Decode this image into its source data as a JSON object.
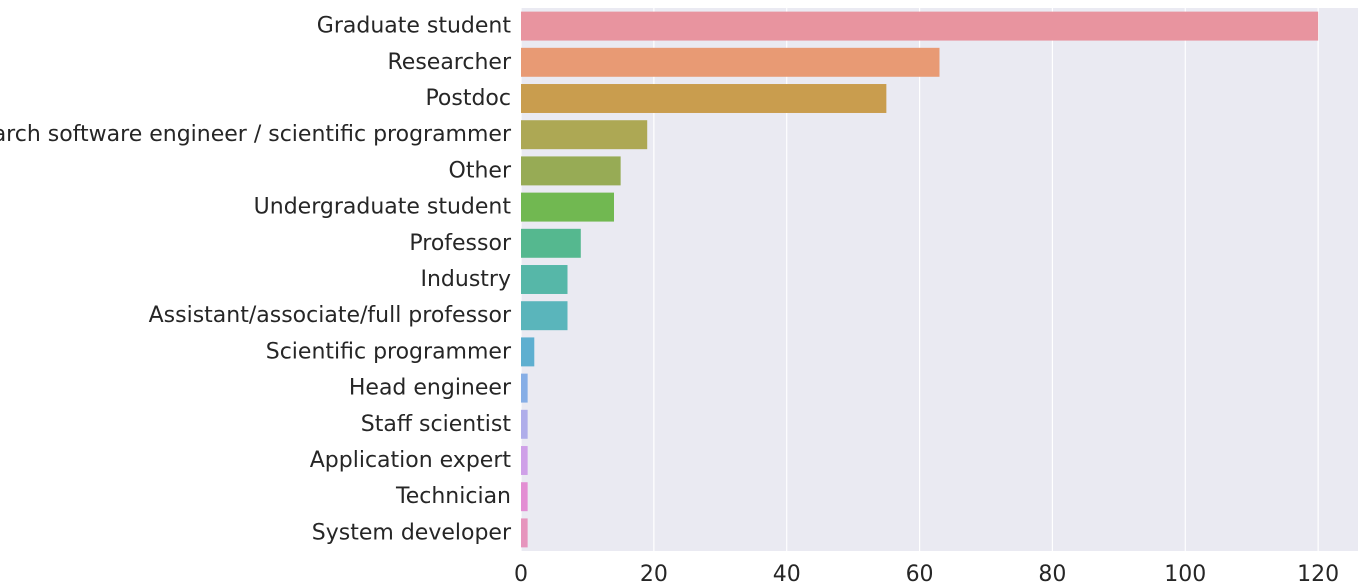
{
  "chart_data": {
    "type": "bar",
    "orientation": "horizontal",
    "categories": [
      "Graduate student",
      "Researcher",
      "Postdoc",
      "Research software engineer / scientific programmer",
      "Other",
      "Undergraduate student",
      "Professor",
      "Industry",
      "Assistant/associate/full professor",
      "Scientific programmer",
      "Head engineer",
      "Staff scientist",
      "Application expert",
      "Technician",
      "System developer"
    ],
    "values": [
      120,
      63,
      55,
      19,
      15,
      14,
      9,
      7,
      7,
      2,
      1,
      1,
      1,
      1,
      1
    ],
    "colors": [
      "#e8949f",
      "#e89a74",
      "#c99d4e",
      "#ada854",
      "#97ab55",
      "#71b851",
      "#55b88f",
      "#56b7a8",
      "#5ab5bb",
      "#5eafd0",
      "#86aee6",
      "#afadea",
      "#cfa0e8",
      "#e38ed3",
      "#e695bd"
    ],
    "xlim": [
      0,
      126
    ],
    "xticks": [
      0,
      20,
      40,
      60,
      80,
      100,
      120
    ],
    "title": "",
    "xlabel": "",
    "ylabel": "",
    "grid": true,
    "background": "#eaeaf2"
  }
}
